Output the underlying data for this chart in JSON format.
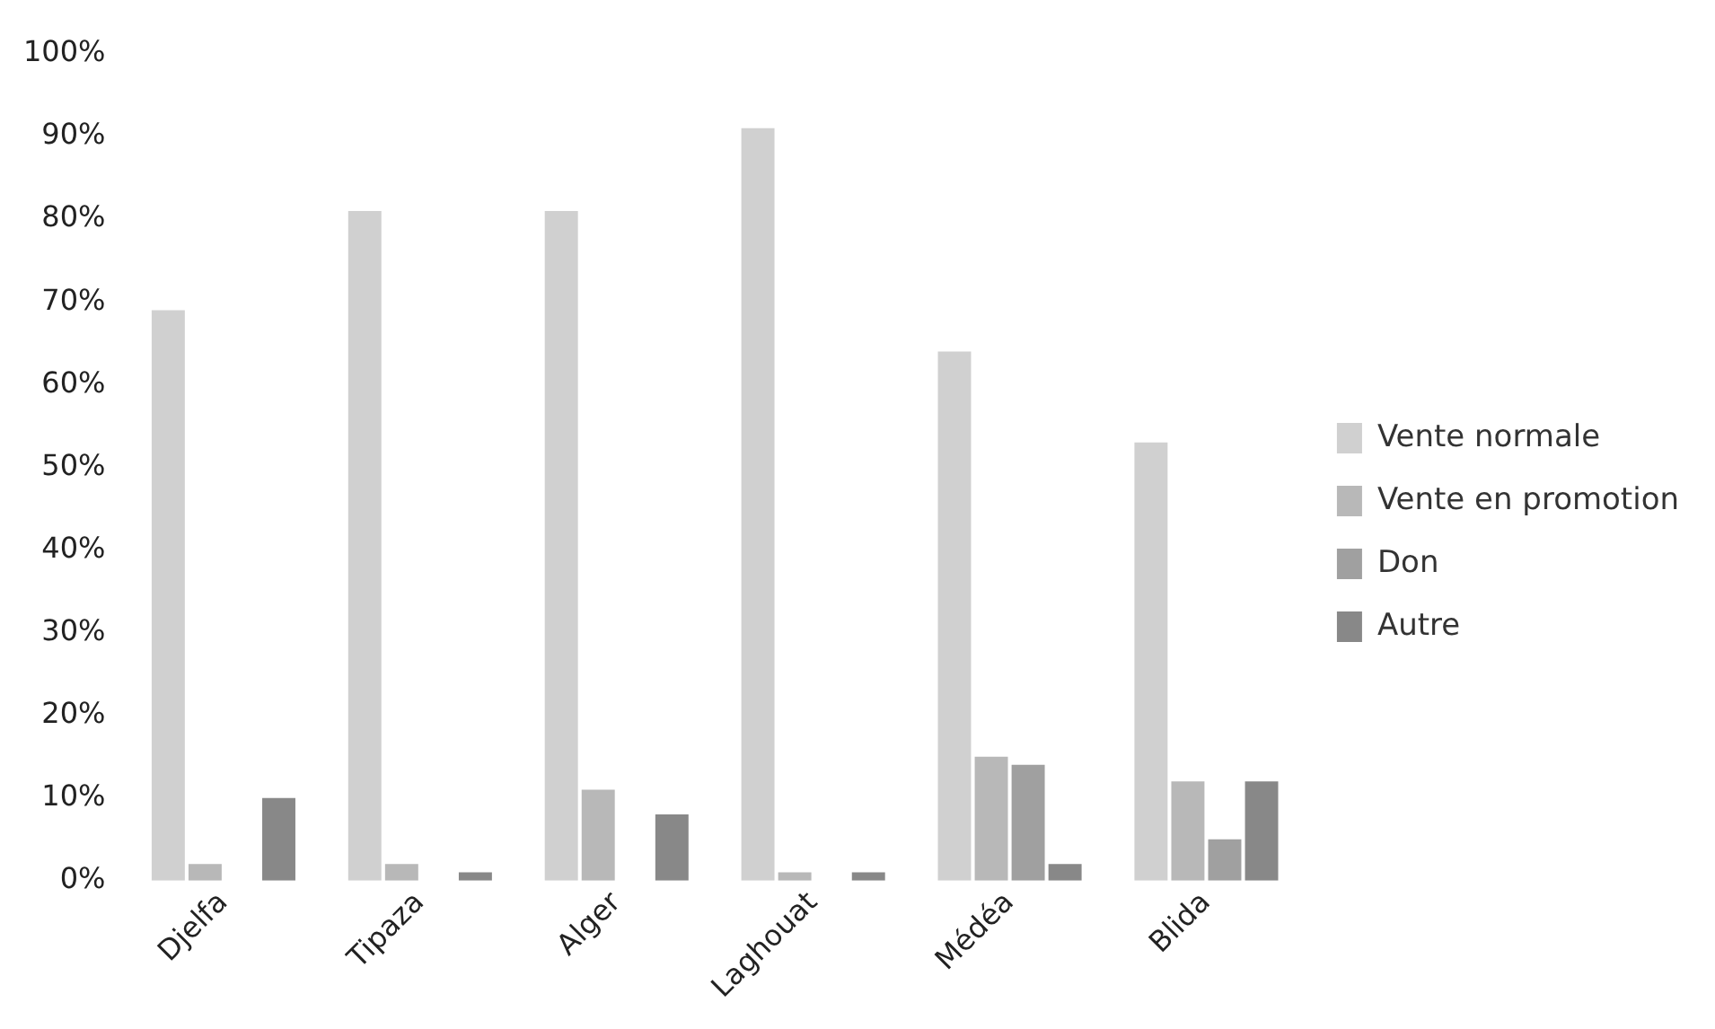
{
  "chart_data": {
    "type": "bar",
    "categories": [
      "Djelfa",
      "Tipaza",
      "Alger",
      "Laghouat",
      "Médéa",
      "Blida"
    ],
    "series": [
      {
        "name": "Vente normale",
        "color": "#d0d0d0",
        "values": [
          69,
          81,
          81,
          91,
          64,
          53
        ]
      },
      {
        "name": "Vente en promotion",
        "color": "#b8b8b8",
        "values": [
          2,
          2,
          11,
          1,
          15,
          12
        ]
      },
      {
        "name": "Don",
        "color": "#a0a0a0",
        "values": [
          0,
          0,
          0,
          0,
          14,
          5
        ]
      },
      {
        "name": "Autre",
        "color": "#888888",
        "values": [
          10,
          1,
          8,
          1,
          2,
          12
        ]
      }
    ],
    "ylim": [
      0,
      100
    ],
    "yticks": [
      {
        "value": 0,
        "label": "0%"
      },
      {
        "value": 10,
        "label": "10%"
      },
      {
        "value": 20,
        "label": "20%"
      },
      {
        "value": 30,
        "label": "30%"
      },
      {
        "value": 40,
        "label": "40%"
      },
      {
        "value": 50,
        "label": "50%"
      },
      {
        "value": 60,
        "label": "60%"
      },
      {
        "value": 70,
        "label": "70%"
      },
      {
        "value": 80,
        "label": "80%"
      },
      {
        "value": 90,
        "label": "90%"
      },
      {
        "value": 100,
        "label": "100%"
      }
    ],
    "grid": false,
    "legend": "right"
  }
}
